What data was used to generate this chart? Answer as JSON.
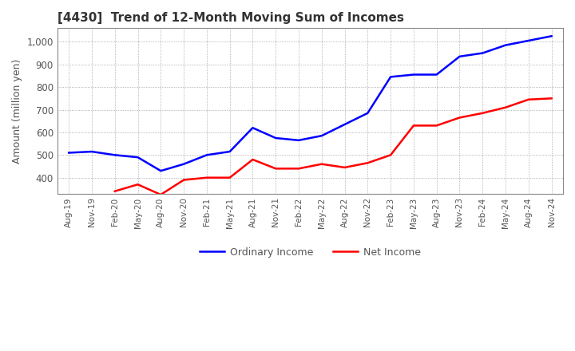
{
  "title": "[4430]  Trend of 12-Month Moving Sum of Incomes",
  "ylabel": "Amount (million yen)",
  "ylim": [
    330,
    1060
  ],
  "yticks": [
    400,
    500,
    600,
    700,
    800,
    900,
    1000
  ],
  "ordinary_income_color": "#0000FF",
  "net_income_color": "#FF0000",
  "background_color": "#FFFFFF",
  "plot_bg_color": "#FFFFFF",
  "grid_color": "#999999",
  "x_labels": [
    "Aug-19",
    "Nov-19",
    "Feb-20",
    "May-20",
    "Aug-20",
    "Nov-20",
    "Feb-21",
    "May-21",
    "Aug-21",
    "Nov-21",
    "Feb-22",
    "May-22",
    "Aug-22",
    "Nov-22",
    "Feb-23",
    "May-23",
    "Aug-23",
    "Nov-23",
    "Feb-24",
    "May-24",
    "Aug-24",
    "Nov-24"
  ],
  "ordinary_income": [
    510,
    515,
    500,
    490,
    430,
    460,
    500,
    515,
    620,
    575,
    565,
    585,
    635,
    685,
    845,
    855,
    855,
    935,
    950,
    985,
    1005,
    1025
  ],
  "net_income": [
    null,
    null,
    340,
    370,
    325,
    390,
    400,
    400,
    480,
    440,
    440,
    460,
    445,
    465,
    500,
    630,
    630,
    665,
    685,
    710,
    745,
    750
  ]
}
